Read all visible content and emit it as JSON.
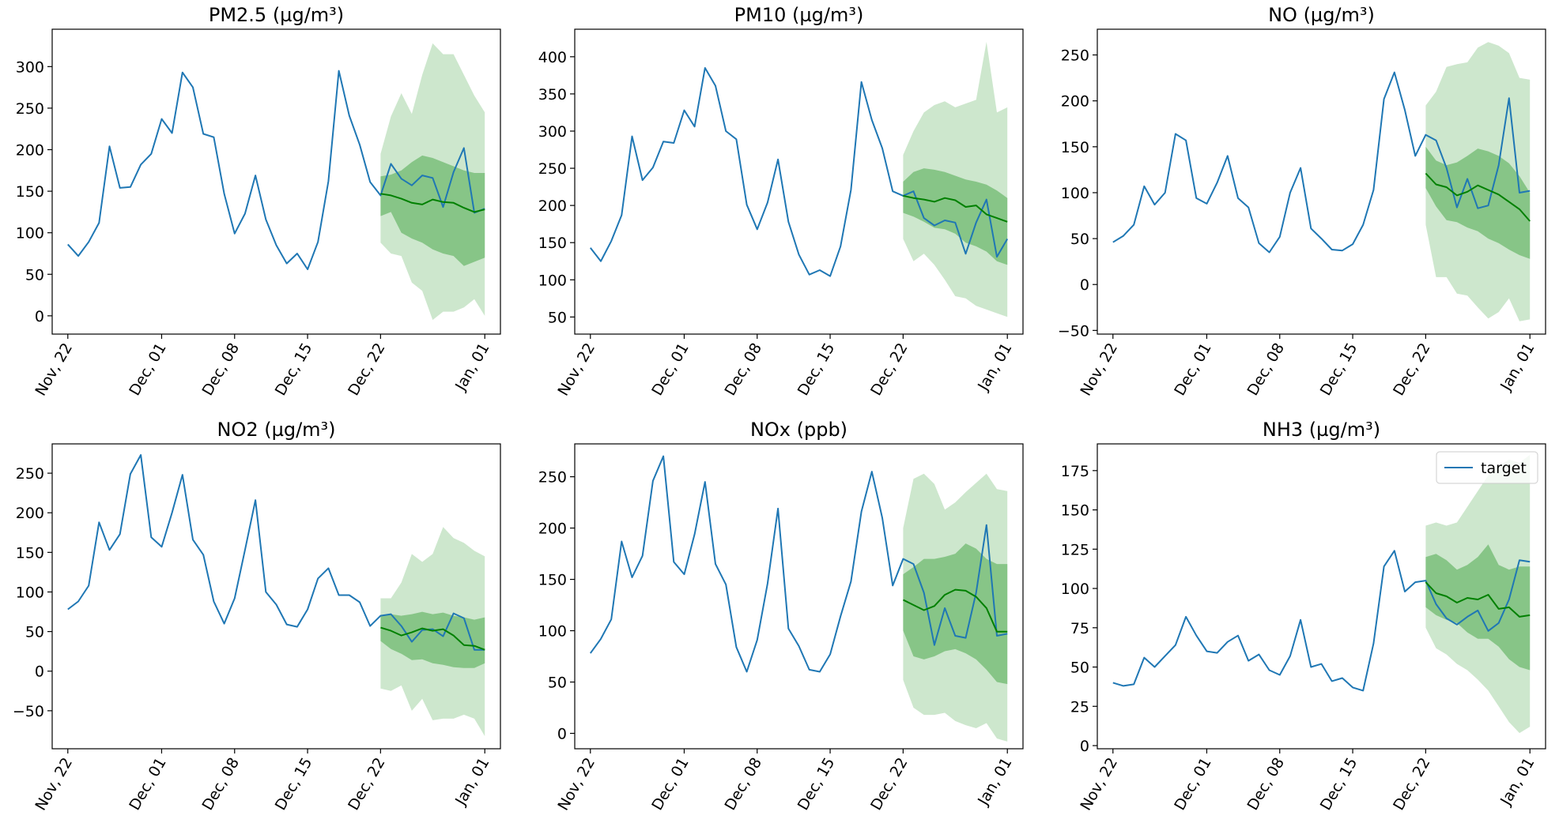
{
  "figure": {
    "background": "#ffffff"
  },
  "colors": {
    "target": "#1f77b4",
    "median": "#008000",
    "band_inner": "#87c587",
    "band_outer": "#cde7cd"
  },
  "legend": {
    "label": "target",
    "panel": 5,
    "placement": "upper right"
  },
  "x_axis": {
    "tick_labels": [
      "Nov, 22",
      "Dec, 01",
      "Dec, 08",
      "Dec, 15",
      "Dec, 22",
      "Jan, 01"
    ],
    "tick_days": [
      0,
      9,
      16,
      23,
      30,
      40
    ],
    "xlim_days": [
      -1.5,
      41.5
    ],
    "tick_rotation_deg": 60
  },
  "chart_data": [
    {
      "type": "line",
      "title": "PM2.5 (µg/m³)",
      "ylim": [
        -22,
        345
      ],
      "yticks": [
        0,
        50,
        100,
        150,
        200,
        250,
        300
      ],
      "series": [
        {
          "name": "target",
          "x_days": [
            0,
            1,
            2,
            3,
            4,
            5,
            6,
            7,
            8,
            9,
            10,
            11,
            12,
            13,
            14,
            15,
            16,
            17,
            18,
            19,
            20,
            21,
            22,
            23,
            24,
            25,
            26,
            27,
            28,
            29,
            30,
            31,
            32,
            33,
            34,
            35,
            36,
            37,
            38,
            39,
            40
          ],
          "y": [
            86,
            72,
            89,
            112,
            204,
            154,
            155,
            182,
            195,
            237,
            220,
            293,
            275,
            219,
            215,
            147,
            99,
            123,
            169,
            116,
            85,
            63,
            75,
            56,
            89,
            162,
            295,
            241,
            206,
            161,
            145,
            183,
            165,
            157,
            169,
            166,
            131,
            173,
            202,
            124,
            129
          ]
        }
      ],
      "forecast": {
        "x_days": [
          30,
          31,
          32,
          33,
          34,
          35,
          36,
          37,
          38,
          39,
          40
        ],
        "median": [
          147,
          145,
          141,
          136,
          134,
          140,
          137,
          136,
          130,
          125,
          128
        ],
        "inner_low": [
          120,
          125,
          100,
          93,
          88,
          80,
          75,
          72,
          60,
          65,
          70
        ],
        "inner_high": [
          168,
          170,
          175,
          185,
          193,
          190,
          185,
          180,
          175,
          172,
          172
        ],
        "outer_low": [
          88,
          75,
          72,
          40,
          30,
          -5,
          5,
          5,
          10,
          20,
          0
        ],
        "outer_high": [
          195,
          240,
          268,
          243,
          290,
          328,
          315,
          315,
          290,
          265,
          245
        ]
      }
    },
    {
      "type": "line",
      "title": "PM10 (µg/m³)",
      "ylim": [
        27,
        437
      ],
      "yticks": [
        50,
        100,
        150,
        200,
        250,
        300,
        350,
        400
      ],
      "series": [
        {
          "name": "target",
          "x_days": [
            0,
            1,
            2,
            3,
            4,
            5,
            6,
            7,
            8,
            9,
            10,
            11,
            12,
            13,
            14,
            15,
            16,
            17,
            18,
            19,
            20,
            21,
            22,
            23,
            24,
            25,
            26,
            27,
            28,
            29,
            30,
            31,
            32,
            33,
            34,
            35,
            36,
            37,
            38,
            39,
            40
          ],
          "y": [
            143,
            125,
            152,
            187,
            293,
            234,
            251,
            286,
            284,
            328,
            306,
            385,
            361,
            300,
            289,
            201,
            168,
            204,
            262,
            178,
            134,
            107,
            113,
            105,
            145,
            221,
            366,
            315,
            277,
            219,
            213,
            219,
            183,
            173,
            180,
            177,
            135,
            177,
            208,
            131,
            155
          ]
        }
      ],
      "forecast": {
        "x_days": [
          30,
          31,
          32,
          33,
          34,
          35,
          36,
          37,
          38,
          39,
          40
        ],
        "median": [
          213,
          210,
          208,
          205,
          210,
          207,
          198,
          200,
          188,
          183,
          178
        ],
        "inner_low": [
          190,
          185,
          178,
          170,
          168,
          162,
          150,
          145,
          138,
          125,
          120
        ],
        "inner_high": [
          232,
          245,
          250,
          248,
          245,
          240,
          235,
          232,
          228,
          220,
          210
        ],
        "outer_low": [
          155,
          125,
          135,
          120,
          100,
          78,
          75,
          65,
          60,
          55,
          50
        ],
        "outer_high": [
          268,
          300,
          325,
          335,
          340,
          332,
          337,
          342,
          420,
          325,
          332
        ]
      }
    },
    {
      "type": "line",
      "title": "NO (µg/m³)",
      "ylim": [
        -54,
        278
      ],
      "yticks": [
        -50,
        0,
        50,
        100,
        150,
        200,
        250
      ],
      "series": [
        {
          "name": "target",
          "x_days": [
            0,
            1,
            2,
            3,
            4,
            5,
            6,
            7,
            8,
            9,
            10,
            11,
            12,
            13,
            14,
            15,
            16,
            17,
            18,
            19,
            20,
            21,
            22,
            23,
            24,
            25,
            26,
            27,
            28,
            29,
            30,
            31,
            32,
            33,
            34,
            35,
            36,
            37,
            38,
            39,
            40
          ],
          "y": [
            46,
            53,
            65,
            107,
            87,
            100,
            164,
            157,
            94,
            88,
            111,
            140,
            94,
            84,
            45,
            35,
            52,
            100,
            127,
            61,
            50,
            38,
            37,
            44,
            65,
            103,
            202,
            231,
            190,
            140,
            163,
            157,
            127,
            84,
            115,
            83,
            86,
            130,
            203,
            100,
            102
          ]
        }
      ],
      "forecast": {
        "x_days": [
          30,
          31,
          32,
          33,
          34,
          35,
          36,
          37,
          38,
          39,
          40
        ],
        "median": [
          121,
          109,
          106,
          97,
          101,
          108,
          103,
          98,
          90,
          82,
          69
        ],
        "inner_low": [
          105,
          85,
          70,
          68,
          62,
          58,
          50,
          45,
          38,
          32,
          28
        ],
        "inner_high": [
          150,
          135,
          130,
          133,
          140,
          148,
          145,
          140,
          132,
          118,
          100
        ],
        "outer_low": [
          65,
          8,
          8,
          -10,
          -12,
          -25,
          -37,
          -30,
          -15,
          -40,
          -38
        ],
        "outer_high": [
          195,
          210,
          237,
          240,
          242,
          258,
          264,
          260,
          252,
          225,
          223
        ]
      }
    },
    {
      "type": "line",
      "title": "NO2 (µg/m³)",
      "ylim": [
        -98,
        287
      ],
      "yticks": [
        -50,
        0,
        50,
        100,
        150,
        200,
        250
      ],
      "series": [
        {
          "name": "target",
          "x_days": [
            0,
            1,
            2,
            3,
            4,
            5,
            6,
            7,
            8,
            9,
            10,
            11,
            12,
            13,
            14,
            15,
            16,
            17,
            18,
            19,
            20,
            21,
            22,
            23,
            24,
            25,
            26,
            27,
            28,
            29,
            30,
            31,
            32,
            33,
            34,
            35,
            36,
            37,
            38,
            39,
            40
          ],
          "y": [
            78,
            88,
            108,
            188,
            153,
            173,
            249,
            273,
            169,
            157,
            200,
            248,
            166,
            147,
            88,
            60,
            92,
            153,
            216,
            100,
            84,
            59,
            56,
            78,
            117,
            130,
            96,
            96,
            87,
            57,
            70,
            72,
            57,
            37,
            52,
            53,
            44,
            73,
            67,
            27,
            27
          ]
        }
      ],
      "forecast": {
        "x_days": [
          30,
          31,
          32,
          33,
          34,
          35,
          36,
          37,
          38,
          39,
          40
        ],
        "median": [
          55,
          51,
          45,
          49,
          54,
          51,
          53,
          45,
          33,
          32,
          27
        ],
        "inner_low": [
          38,
          28,
          22,
          14,
          15,
          10,
          8,
          5,
          4,
          4,
          10
        ],
        "inner_high": [
          70,
          72,
          70,
          72,
          75,
          72,
          74,
          70,
          68,
          65,
          68
        ],
        "outer_low": [
          -22,
          -25,
          -18,
          -50,
          -35,
          -62,
          -60,
          -60,
          -55,
          -60,
          -82
        ],
        "outer_high": [
          92,
          92,
          112,
          148,
          138,
          148,
          182,
          168,
          162,
          152,
          145
        ]
      }
    },
    {
      "type": "line",
      "title": "NOx (ppb)",
      "ylim": [
        -15,
        282
      ],
      "yticks": [
        0,
        50,
        100,
        150,
        200,
        250
      ],
      "series": [
        {
          "name": "target",
          "x_days": [
            0,
            1,
            2,
            3,
            4,
            5,
            6,
            7,
            8,
            9,
            10,
            11,
            12,
            13,
            14,
            15,
            16,
            17,
            18,
            19,
            20,
            21,
            22,
            23,
            24,
            25,
            26,
            27,
            28,
            29,
            30,
            31,
            32,
            33,
            34,
            35,
            36,
            37,
            38,
            39,
            40
          ],
          "y": [
            78,
            92,
            111,
            187,
            152,
            173,
            246,
            270,
            167,
            155,
            194,
            245,
            165,
            145,
            84,
            60,
            91,
            146,
            219,
            102,
            85,
            62,
            60,
            77,
            114,
            148,
            216,
            255,
            210,
            144,
            170,
            165,
            137,
            86,
            122,
            95,
            93,
            137,
            203,
            95,
            97
          ]
        }
      ],
      "forecast": {
        "x_days": [
          30,
          31,
          32,
          33,
          34,
          35,
          36,
          37,
          38,
          39,
          40
        ],
        "median": [
          130,
          125,
          120,
          124,
          135,
          140,
          139,
          133,
          122,
          99,
          99
        ],
        "inner_low": [
          100,
          75,
          72,
          75,
          80,
          82,
          78,
          72,
          62,
          50,
          48
        ],
        "inner_high": [
          155,
          162,
          170,
          170,
          172,
          175,
          185,
          180,
          170,
          165,
          165
        ],
        "outer_low": [
          52,
          25,
          18,
          18,
          20,
          12,
          8,
          5,
          10,
          -5,
          -8
        ],
        "outer_high": [
          200,
          248,
          253,
          243,
          218,
          225,
          235,
          244,
          253,
          238,
          236
        ]
      }
    },
    {
      "type": "line",
      "title": "NH3 (µg/m³)",
      "ylim": [
        -2,
        192
      ],
      "yticks": [
        0,
        25,
        50,
        75,
        100,
        125,
        150,
        175
      ],
      "series": [
        {
          "name": "target",
          "x_days": [
            0,
            1,
            2,
            3,
            4,
            5,
            6,
            7,
            8,
            9,
            10,
            11,
            12,
            13,
            14,
            15,
            16,
            17,
            18,
            19,
            20,
            21,
            22,
            23,
            24,
            25,
            26,
            27,
            28,
            29,
            30,
            31,
            32,
            33,
            34,
            35,
            36,
            37,
            38,
            39,
            40
          ],
          "y": [
            40,
            38,
            39,
            56,
            50,
            57,
            64,
            82,
            70,
            60,
            59,
            66,
            70,
            54,
            58,
            48,
            45,
            57,
            80,
            50,
            52,
            41,
            43,
            37,
            35,
            65,
            114,
            124,
            98,
            104,
            105,
            90,
            81,
            77,
            82,
            86,
            73,
            78,
            93,
            118,
            117
          ]
        }
      ],
      "forecast": {
        "x_days": [
          30,
          31,
          32,
          33,
          34,
          35,
          36,
          37,
          38,
          39,
          40
        ],
        "median": [
          104,
          97,
          95,
          91,
          94,
          93,
          96,
          87,
          88,
          82,
          83
        ],
        "inner_low": [
          88,
          83,
          80,
          78,
          72,
          68,
          68,
          63,
          55,
          50,
          48
        ],
        "inner_high": [
          120,
          122,
          118,
          112,
          115,
          120,
          128,
          115,
          112,
          114,
          114
        ],
        "outer_low": [
          75,
          62,
          58,
          52,
          48,
          42,
          35,
          25,
          15,
          8,
          12
        ],
        "outer_high": [
          140,
          142,
          140,
          142,
          152,
          162,
          172,
          178,
          182,
          180,
          185
        ]
      }
    }
  ]
}
